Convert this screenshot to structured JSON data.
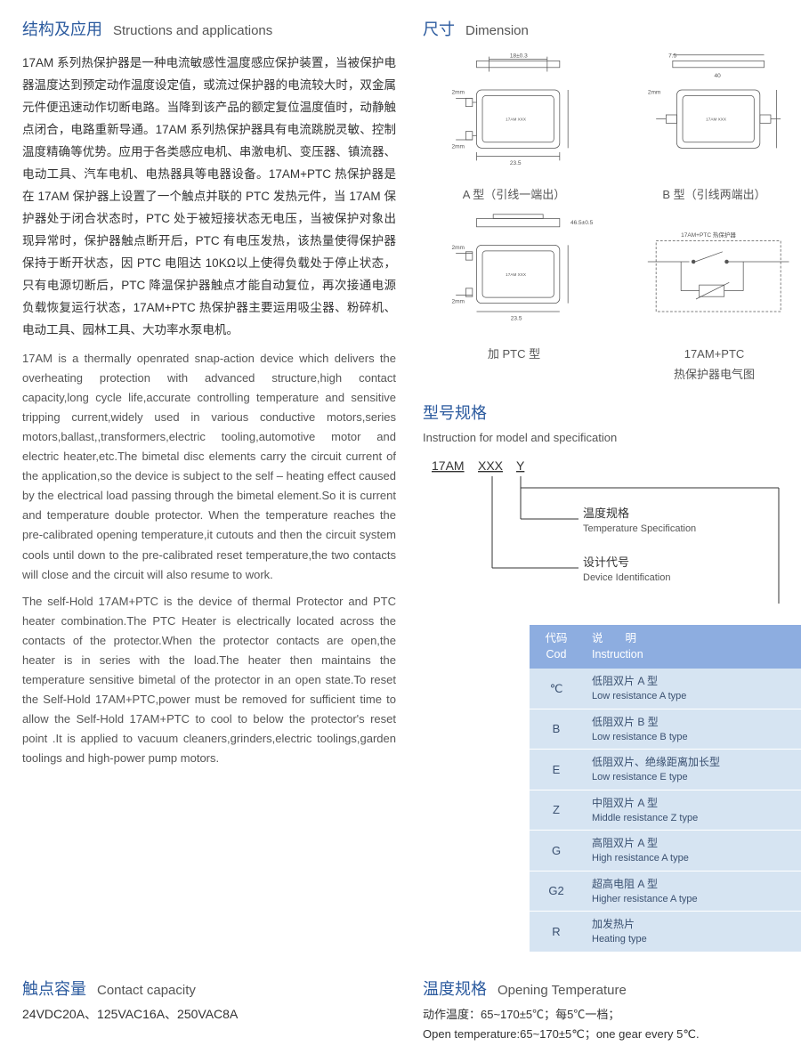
{
  "sections": {
    "struct": {
      "cn": "结构及应用",
      "en": "Structions and applications"
    },
    "dim": {
      "cn": "尺寸",
      "en": "Dimension"
    },
    "model": {
      "cn": "型号规格",
      "en": "Instruction for model and specification"
    },
    "contact": {
      "cn": "触点容量",
      "en": "Contact capacity"
    },
    "temp": {
      "cn": "温度规格",
      "en": "Opening Temperature"
    }
  },
  "body": {
    "cn1": "17AM 系列热保护器是一种电流敏感性温度感应保护装置，当被保护电器温度达到预定动作温度设定值，或流过保护器的电流较大时，双金属元件便迅速动作切断电路。当降到该产品的额定复位温度值时，动静触点闭合，电路重新导通。17AM 系列热保护器具有电流跳脱灵敏、控制温度精确等优势。应用于各类感应电机、串激电机、变压器、镇流器、电动工具、汽车电机、电热器具等电器设备。17AM+PTC 热保护器是在 17AM 保护器上设置了一个触点并联的 PTC 发热元件，当 17AM 保护器处于闭合状态时，PTC 处于被短接状态无电压，当被保护对象出现异常时，保护器触点断开后，PTC 有电压发热，该热量使得保护器保持于断开状态，因 PTC 电阻达 10KΩ以上使得负载处于停止状态，只有电源切断后，PTC 降温保护器触点才能自动复位，再次接通电源负载恢复运行状态，17AM+PTC 热保护器主要运用吸尘器、粉碎机、电动工具、园林工具、大功率水泵电机。",
    "en1": "17AM is a thermally openrated snap-action device which delivers the overheating protection with advanced structure,high contact capacity,long cycle life,accurate controlling temperature and sensitive tripping current,widely used in various conductive motors,series motors,ballast,,transformers,electric tooling,automotive motor and electric heater,etc.The bimetal disc elements carry the circuit current of the application,so the device is subject to the self – heating effect caused by the electrical load passing through the bimetal element.So it is current and temperature double protector. When the temperature reaches the pre-calibrated opening temperature,it cutouts and then the circuit system cools until down to the pre-calibrated reset temperature,the two contacts will close and the circuit will also resume to work.",
    "en2": "The self-Hold 17AM+PTC is the device of thermal Protector and PTC heater combination.The PTC Heater is electrically located across the contacts of the protector.When the protector contacts are open,the heater is in series with the load.The heater then maintains the temperature sensitive bimetal of the protector in an open state.To reset the Self-Hold 17AM+PTC,power must be removed for sufficient time to allow the Self-Hold 17AM+PTC to cool to below the protector's reset point .It is applied to vacuum cleaners,grinders,electric toolings,garden toolings and high-power pump motors."
  },
  "diagrams": {
    "a": "A 型（引线一端出）",
    "b": "B 型（引线两端出）",
    "ptc": "加 PTC 型",
    "elec_cn": "17AM+PTC",
    "elec_sub": "热保护器电气图",
    "dim1": "18±0.3",
    "dim2": "2mm",
    "dim3": "2mm",
    "dim4": "23.5",
    "dim5": "7.5",
    "dim6": "40",
    "dim7": "46.5±0.5"
  },
  "model_tree": {
    "root": "17AM",
    "x": "XXX",
    "y": "Y",
    "branch1_cn": "温度规格",
    "branch1_en": "Temperature Specification",
    "branch2_cn": "设计代号",
    "branch2_en": "Device Identification"
  },
  "spec_table": {
    "header_code_cn": "代码",
    "header_code_en": "Cod",
    "header_inst_cn": "说　　明",
    "header_inst_en": "Instruction",
    "rows": [
      {
        "code": "℃",
        "cn": "低阻双片 A 型",
        "en": "Low resistance A type"
      },
      {
        "code": "B",
        "cn": "低阻双片 B 型",
        "en": "Low resistance B type"
      },
      {
        "code": "E",
        "cn": "低阻双片、绝缘距离加长型",
        "en": "Low resistance E type"
      },
      {
        "code": "Z",
        "cn": "中阻双片 A 型",
        "en": "Middle resistance Z type"
      },
      {
        "code": "G",
        "cn": "高阻双片 A 型",
        "en": "High resistance A type"
      },
      {
        "code": "G2",
        "cn": "超高电阻 A 型",
        "en": "Higher resistance A type"
      },
      {
        "code": "R",
        "cn": "加发热片",
        "en": "Heating type"
      }
    ]
  },
  "contact": {
    "value": "24VDC20A、125VAC16A、250VAC8A"
  },
  "temperature": {
    "cn": "动作温度：65~170±5℃；每5℃一档；",
    "en": "Open temperature:65~170±5℃；one gear every 5℃."
  },
  "colors": {
    "accent": "#2b5a9e",
    "table_header": "#8dade0",
    "table_row": "#d6e4f2"
  }
}
